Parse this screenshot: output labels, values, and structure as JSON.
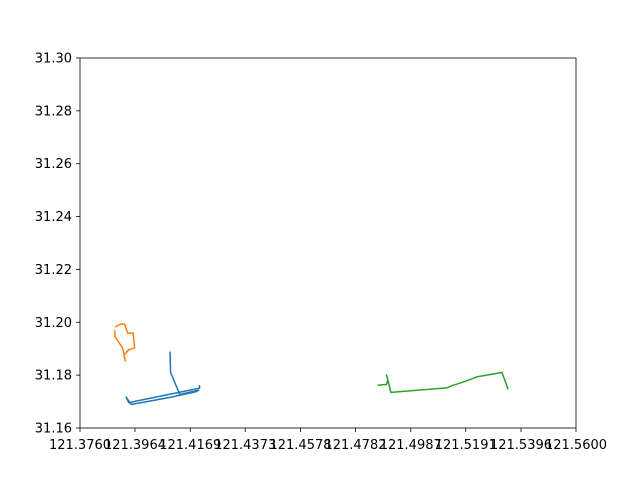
{
  "chart_data": {
    "type": "line",
    "title": "",
    "xlabel": "",
    "ylabel": "",
    "xlim": [
      121.376,
      121.56
    ],
    "ylim": [
      31.16,
      31.3
    ],
    "x_ticks": [
      121.376,
      121.3964,
      121.4169,
      121.4373,
      121.4578,
      121.4782,
      121.4987,
      121.5191,
      121.5396,
      121.56
    ],
    "x_tick_labels": [
      "121.3760",
      "121.3964",
      "121.4169",
      "121.4373",
      "121.4578",
      "121.4782",
      "121.4987",
      "121.5191",
      "121.5396",
      "121.5600"
    ],
    "y_ticks": [
      31.16,
      31.18,
      31.2,
      31.22,
      31.24,
      31.26,
      31.28,
      31.3
    ],
    "y_tick_labels": [
      "31.16",
      "31.18",
      "31.20",
      "31.22",
      "31.24",
      "31.26",
      "31.28",
      "31.30"
    ],
    "grid": false,
    "legend": "none",
    "series": [
      {
        "color": "#1f77b4",
        "points": [
          [
            121.4094,
            31.1886
          ],
          [
            121.4096,
            31.1811
          ],
          [
            121.413,
            31.1727
          ],
          [
            121.42,
            31.1743
          ],
          [
            121.419,
            31.1737
          ],
          [
            121.4094,
            31.1716
          ],
          [
            121.395,
            31.1689
          ],
          [
            121.3931,
            31.1717
          ],
          [
            121.3941,
            31.1696
          ],
          [
            121.4204,
            31.1751
          ],
          [
            121.4203,
            31.176
          ]
        ]
      },
      {
        "color": "#ff7f0e",
        "points": [
          [
            121.3889,
            31.1967
          ],
          [
            121.389,
            31.1946
          ],
          [
            121.3918,
            31.1903
          ],
          [
            121.3928,
            31.1854
          ],
          [
            121.3923,
            31.1874
          ],
          [
            121.394,
            31.1896
          ],
          [
            121.3963,
            31.1903
          ],
          [
            121.3957,
            31.1959
          ],
          [
            121.3937,
            31.1959
          ],
          [
            121.3925,
            31.1993
          ],
          [
            121.3911,
            31.1993
          ],
          [
            121.3892,
            31.1983
          ]
        ]
      },
      {
        "color": "#2ca02c",
        "points": [
          [
            121.4866,
            31.1762
          ],
          [
            121.4897,
            31.1765
          ],
          [
            121.4902,
            31.1783
          ],
          [
            121.4897,
            31.1801
          ],
          [
            121.4903,
            31.1779
          ],
          [
            121.4913,
            31.1735
          ],
          [
            121.5022,
            31.1744
          ],
          [
            121.5121,
            31.1752
          ],
          [
            121.514,
            31.176
          ],
          [
            121.5191,
            31.1777
          ],
          [
            121.5234,
            31.1794
          ],
          [
            121.5325,
            31.181
          ],
          [
            121.5336,
            31.1781
          ],
          [
            121.5347,
            31.1749
          ]
        ]
      }
    ]
  }
}
